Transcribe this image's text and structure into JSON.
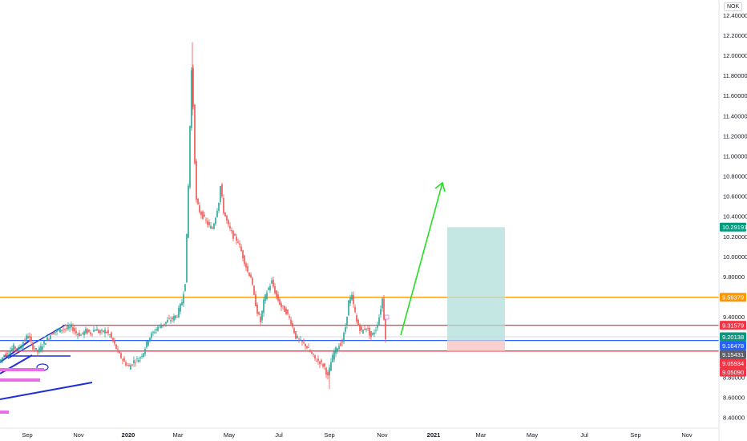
{
  "currency": "NOK",
  "chart_data": {
    "type": "candlestick",
    "y_ticks": [
      "8.40000",
      "8.60000",
      "8.80000",
      "9.00000",
      "9.20000",
      "9.40000",
      "9.60000",
      "9.80000",
      "10.00000",
      "10.20000",
      "10.40000",
      "10.60000",
      "10.80000",
      "11.00000",
      "11.20000",
      "11.40000",
      "11.60000",
      "11.80000",
      "12.00000",
      "12.20000",
      "12.40000"
    ],
    "x_ticks": [
      "Sep",
      "Nov",
      "2020",
      "Mar",
      "May",
      "Jul",
      "Sep",
      "Nov",
      "2021",
      "Mar",
      "May",
      "Jul",
      "Sep",
      "Nov"
    ],
    "ylim": [
      8.36,
      12.42
    ],
    "price_series": [
      [
        0,
        8.95
      ],
      [
        6,
        9.02
      ],
      [
        12,
        9.05
      ],
      [
        18,
        9.1
      ],
      [
        24,
        9.08
      ],
      [
        30,
        9.15
      ],
      [
        36,
        9.22
      ],
      [
        42,
        9.1
      ],
      [
        48,
        9.05
      ],
      [
        54,
        9.12
      ],
      [
        60,
        9.18
      ],
      [
        66,
        9.24
      ],
      [
        72,
        9.26
      ],
      [
        78,
        9.28
      ],
      [
        84,
        9.28
      ],
      [
        90,
        9.3
      ],
      [
        96,
        9.24
      ],
      [
        102,
        9.22
      ],
      [
        108,
        9.26
      ],
      [
        114,
        9.24
      ],
      [
        120,
        9.28
      ],
      [
        126,
        9.24
      ],
      [
        132,
        9.26
      ],
      [
        138,
        9.22
      ],
      [
        144,
        9.12
      ],
      [
        150,
        9.02
      ],
      [
        156,
        8.95
      ],
      [
        162,
        8.9
      ],
      [
        168,
        8.96
      ],
      [
        174,
        8.98
      ],
      [
        180,
        9.05
      ],
      [
        186,
        9.18
      ],
      [
        192,
        9.24
      ],
      [
        198,
        9.3
      ],
      [
        204,
        9.32
      ],
      [
        210,
        9.36
      ],
      [
        216,
        9.38
      ],
      [
        222,
        9.42
      ],
      [
        228,
        9.55
      ],
      [
        232,
        9.75
      ],
      [
        234,
        10.2
      ],
      [
        236,
        10.7
      ],
      [
        238,
        11.3
      ],
      [
        240,
        11.85
      ],
      [
        242,
        11.5
      ],
      [
        244,
        10.95
      ],
      [
        246,
        10.55
      ],
      [
        250,
        10.45
      ],
      [
        254,
        10.4
      ],
      [
        258,
        10.35
      ],
      [
        262,
        10.3
      ],
      [
        266,
        10.28
      ],
      [
        270,
        10.4
      ],
      [
        274,
        10.55
      ],
      [
        276,
        10.7
      ],
      [
        280,
        10.45
      ],
      [
        286,
        10.3
      ],
      [
        292,
        10.2
      ],
      [
        298,
        10.15
      ],
      [
        304,
        10.0
      ],
      [
        310,
        9.85
      ],
      [
        314,
        9.8
      ],
      [
        318,
        9.6
      ],
      [
        322,
        9.45
      ],
      [
        326,
        9.35
      ],
      [
        330,
        9.55
      ],
      [
        334,
        9.65
      ],
      [
        340,
        9.75
      ],
      [
        346,
        9.6
      ],
      [
        352,
        9.5
      ],
      [
        358,
        9.45
      ],
      [
        364,
        9.35
      ],
      [
        370,
        9.2
      ],
      [
        376,
        9.15
      ],
      [
        382,
        9.12
      ],
      [
        388,
        9.05
      ],
      [
        394,
        8.98
      ],
      [
        400,
        8.95
      ],
      [
        406,
        8.9
      ],
      [
        410,
        8.8
      ],
      [
        414,
        8.95
      ],
      [
        418,
        9.05
      ],
      [
        422,
        9.1
      ],
      [
        428,
        9.15
      ],
      [
        432,
        9.3
      ],
      [
        436,
        9.55
      ],
      [
        440,
        9.6
      ],
      [
        446,
        9.35
      ],
      [
        452,
        9.25
      ],
      [
        458,
        9.3
      ],
      [
        464,
        9.2
      ],
      [
        470,
        9.28
      ],
      [
        474,
        9.4
      ],
      [
        478,
        9.58
      ],
      [
        482,
        9.2
      ]
    ],
    "horizontal_levels": [
      {
        "value": 9.59379,
        "label": "9.59379",
        "color": "#ff9800"
      },
      {
        "value": 9.31579,
        "label": "9.31579",
        "color": "#f23645"
      },
      {
        "value": 9.16478,
        "label": "9.16478",
        "color": "#2962ff"
      },
      {
        "value": 9.05934,
        "label": "9.05934",
        "color": "#f23645"
      }
    ],
    "price_badges": [
      {
        "value": 10.29191,
        "label": "10.29191",
        "color": "#089981"
      },
      {
        "value": 9.59379,
        "label": "9.59379",
        "color": "#ff9800"
      },
      {
        "value": 9.31579,
        "label": "9.31579",
        "color": "#f23645"
      },
      {
        "value": 9.20138,
        "label": "9.20138",
        "color": "#089981"
      },
      {
        "value": 9.16478,
        "label": "9.16478",
        "color": "#2962ff"
      },
      {
        "value": 9.15431,
        "label": "9.15431",
        "color": "#5d606b"
      },
      {
        "value": 9.05934,
        "label": "9.05934",
        "color": "#f23645"
      },
      {
        "value": 9.0509,
        "label": "9.05090",
        "color": "#f23645"
      }
    ],
    "position_box": {
      "entry": 9.16478,
      "target": 10.29191,
      "stop": 9.05934
    },
    "grid": false
  },
  "colors": {
    "up": "#26a69a",
    "down": "#ef5350",
    "arrow": "#22e022",
    "trendline": "#1e2fd6",
    "highlight": "#e86ee8",
    "profit_fill": "#b2dfdb",
    "loss_fill": "#f8c8c8"
  }
}
